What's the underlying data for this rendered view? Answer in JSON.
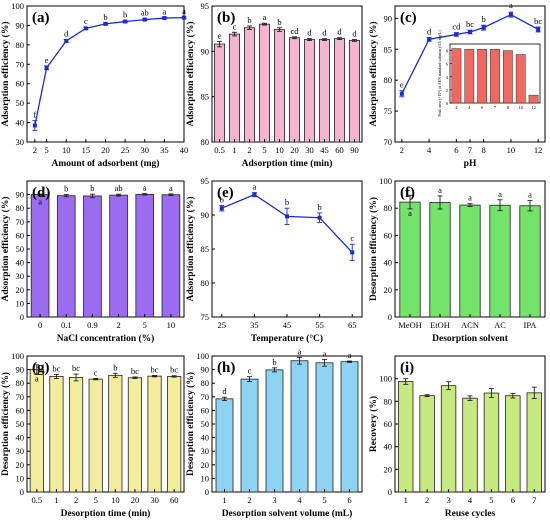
{
  "chart_data": [
    {
      "panel": "(a)",
      "type": "line",
      "color": "#1f2ad6",
      "marker": "square",
      "xlabel": "Amount of adsorbent (mg)",
      "ylabel": "Adsorption efficiency (%)",
      "xlim": [
        0,
        40
      ],
      "xticks": [
        2,
        5,
        10,
        15,
        20,
        25,
        30,
        35,
        40
      ],
      "ylim": [
        30,
        100
      ],
      "yticks": [
        30,
        40,
        50,
        60,
        70,
        80,
        90,
        100
      ],
      "x": [
        2,
        5,
        10,
        15,
        20,
        25,
        30,
        35,
        40
      ],
      "values": [
        38.5,
        68.2,
        82.0,
        88.5,
        90.8,
        92.0,
        93.0,
        93.8,
        94.0
      ],
      "errors": [
        2.5,
        1.0,
        0.8,
        0.6,
        0.5,
        0.5,
        0.5,
        0.4,
        0.4
      ],
      "labels": [
        "f",
        "e",
        "d",
        "c",
        "b",
        "b",
        "ab",
        "a",
        "a"
      ]
    },
    {
      "panel": "(b)",
      "type": "bar",
      "color": "#f6b5cf",
      "xlabel": "Adsorption time (min)",
      "ylabel": "Adsorption efficiency (%)",
      "ylim": [
        80,
        95
      ],
      "yticks": [
        80,
        85,
        90,
        95
      ],
      "categories": [
        "0.5",
        "1",
        "2",
        "5",
        "10",
        "20",
        "30",
        "45",
        "60",
        "90"
      ],
      "values": [
        90.8,
        91.9,
        92.6,
        93.0,
        92.4,
        91.5,
        91.3,
        91.3,
        91.4,
        91.2
      ],
      "errors": [
        0.3,
        0.2,
        0.2,
        0.1,
        0.2,
        0.1,
        0.1,
        0.1,
        0.1,
        0.1
      ],
      "labels": [
        "e",
        "c",
        "b",
        "a",
        "b",
        "cd",
        "d",
        "d",
        "d",
        "d"
      ]
    },
    {
      "panel": "(c)",
      "type": "line",
      "color": "#1f2ad6",
      "marker": "square",
      "xlabel": "pH",
      "ylabel": "Adsorption efficiency (%)",
      "xlim": [
        1.5,
        12.5
      ],
      "xticks": [
        2,
        4,
        6,
        7,
        8,
        10,
        12
      ],
      "ylim": [
        70,
        92
      ],
      "yticks": [
        70,
        75,
        80,
        85,
        90
      ],
      "x": [
        2,
        4,
        6,
        7,
        8,
        10,
        12
      ],
      "values": [
        77.8,
        86.6,
        87.4,
        87.8,
        88.5,
        90.6,
        88.2
      ],
      "errors": [
        0.5,
        0.3,
        0.3,
        0.3,
        0.4,
        0.4,
        0.4
      ],
      "labels": [
        "e",
        "d",
        "cd",
        "bc",
        "b",
        "a",
        "bc"
      ],
      "inset": {
        "type": "bar",
        "color": "#f06860",
        "ylabel": "Peak area (×10³) of SEN standard solution (0.5 mg/L)",
        "ylim": [
          0,
          9
        ],
        "yticks": [
          0,
          2,
          4,
          6,
          8
        ],
        "categories": [
          "2",
          "4",
          "6",
          "7",
          "8",
          "10",
          "12"
        ],
        "values": [
          8.3,
          8.2,
          8.2,
          8.2,
          8.0,
          7.4,
          1.2
        ]
      }
    },
    {
      "panel": "(d)",
      "type": "bar",
      "color": "#9b6cf0",
      "xlabel": "NaCl concentration (%)",
      "ylabel": "Adsorption efficiency (%)",
      "ylim": [
        0,
        100
      ],
      "yticks": [
        0,
        10,
        20,
        30,
        40,
        50,
        60,
        70,
        80,
        90
      ],
      "categories": [
        "0",
        "0.1",
        "0.9",
        "2",
        "5",
        "10"
      ],
      "values": [
        90.0,
        89.2,
        89.0,
        89.6,
        90.2,
        89.9
      ],
      "errors": [
        0.4,
        0.8,
        1.3,
        0.7,
        0.5,
        0.6
      ],
      "labels": [
        "a",
        "b",
        "b",
        "ab",
        "a",
        "a"
      ]
    },
    {
      "panel": "(e)",
      "type": "line",
      "color": "#1f2ad6",
      "marker": "square",
      "xlabel": "Temperature (°C)",
      "ylabel": "Adsorption efficiency (%)",
      "xlim": [
        22,
        68
      ],
      "xticks": [
        25,
        35,
        45,
        55,
        65
      ],
      "ylim": [
        75,
        95
      ],
      "yticks": [
        75,
        80,
        85,
        90,
        95
      ],
      "x": [
        25,
        35,
        45,
        55,
        65
      ],
      "values": [
        91.0,
        93.0,
        89.8,
        89.6,
        84.5
      ],
      "errors": [
        0.4,
        0.3,
        1.2,
        0.7,
        1.2
      ],
      "labels": [
        "b",
        "a",
        "b",
        "b",
        "c"
      ]
    },
    {
      "panel": "(f)",
      "type": "bar",
      "color": "#73e36a",
      "xlabel": "Desorption solvent",
      "ylabel": "Desorption efficiency (%)",
      "ylim": [
        0,
        100
      ],
      "yticks": [
        0,
        20,
        40,
        60,
        80,
        100
      ],
      "categories": [
        "MeOH",
        "EtOH",
        "ACN",
        "AC",
        "IPA"
      ],
      "values": [
        84.5,
        84.2,
        82.3,
        82.2,
        81.8
      ],
      "errors": [
        5.0,
        4.8,
        1.0,
        4.0,
        3.8
      ],
      "labels": [
        "a",
        "a",
        "a",
        "a",
        "a"
      ]
    },
    {
      "panel": "(g)",
      "type": "bar",
      "color": "#f2ec9c",
      "xlabel": "Desorption time (min)",
      "ylabel": "Desorption efficiency (%)",
      "ylim": [
        0,
        100
      ],
      "yticks": [
        0,
        10,
        20,
        30,
        40,
        50,
        60,
        70,
        80,
        90,
        100
      ],
      "categories": [
        "0.5",
        "1",
        "2",
        "5",
        "10",
        "20",
        "30",
        "60"
      ],
      "values": [
        90.0,
        85.0,
        84.2,
        83.0,
        85.8,
        84.0,
        85.2,
        85.0
      ],
      "errors": [
        3.5,
        1.5,
        2.5,
        0.5,
        1.5,
        0.6,
        0.5,
        0.5
      ],
      "labels": [
        "a",
        "bc",
        "bc",
        "c",
        "b",
        "bc",
        "bc",
        "bc"
      ]
    },
    {
      "panel": "(h)",
      "type": "bar",
      "color": "#8fd3f2",
      "xlabel": "Desorption solvent volume (mL)",
      "ylabel": "Desorption efficiency (%)",
      "ylim": [
        0,
        100
      ],
      "yticks": [
        0,
        10,
        20,
        30,
        40,
        50,
        60,
        70,
        80,
        90,
        100
      ],
      "categories": [
        "1",
        "2",
        "3",
        "4",
        "5",
        "6"
      ],
      "values": [
        68.5,
        83.0,
        89.8,
        96.5,
        95.0,
        95.8
      ],
      "errors": [
        1.2,
        1.8,
        1.5,
        2.5,
        2.5,
        0.5
      ],
      "labels": [
        "d",
        "c",
        "b",
        "a",
        "a",
        "a"
      ]
    },
    {
      "panel": "(i)",
      "type": "bar",
      "color": "#c7ea80",
      "xlabel": "Reuse cycles",
      "ylabel": "Recovery (%)",
      "ylim": [
        0,
        120
      ],
      "yticks": [
        0,
        20,
        40,
        60,
        80,
        100
      ],
      "categories": [
        "1",
        "2",
        "3",
        "4",
        "5",
        "6",
        "7"
      ],
      "values": [
        97.5,
        85.0,
        93.8,
        82.8,
        87.3,
        85.0,
        87.5
      ],
      "errors": [
        2.5,
        0.8,
        3.5,
        2.0,
        4.0,
        2.0,
        5.0
      ],
      "labels": []
    }
  ]
}
